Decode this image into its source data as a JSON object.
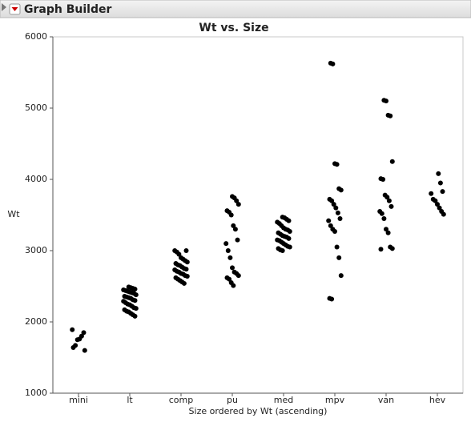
{
  "header": {
    "title": "Graph Builder"
  },
  "chart_data": {
    "type": "strip",
    "title": "Wt vs. Size",
    "x_label": "Size ordered by Wt (ascending)",
    "y_label": "Wt",
    "ylim": [
      1000,
      6000
    ],
    "yticks": [
      1000,
      2000,
      3000,
      4000,
      5000,
      6000
    ],
    "color": "#000000",
    "groups": [
      {
        "category": "mini",
        "values": [
          1890,
          1850,
          1800,
          1760,
          1750,
          1670,
          1640,
          1600
        ]
      },
      {
        "category": "lt",
        "values": [
          2080,
          2100,
          2120,
          2140,
          2150,
          2170,
          2190,
          2200,
          2220,
          2240,
          2250,
          2270,
          2290,
          2300,
          2310,
          2330,
          2340,
          2350,
          2360,
          2380,
          2400,
          2410,
          2420,
          2430,
          2440,
          2450,
          2460,
          2470,
          2480,
          2490
        ]
      },
      {
        "category": "comp",
        "values": [
          2540,
          2560,
          2580,
          2600,
          2620,
          2640,
          2650,
          2670,
          2680,
          2700,
          2710,
          2730,
          2740,
          2750,
          2770,
          2790,
          2800,
          2820,
          2840,
          2860,
          2880,
          2900,
          2950,
          2980,
          3000,
          3000
        ]
      },
      {
        "category": "pu",
        "values": [
          2510,
          2550,
          2600,
          2620,
          2650,
          2680,
          2700,
          2760,
          2900,
          3000,
          3100,
          3150,
          3300,
          3350,
          3500,
          3540,
          3560,
          3650,
          3700,
          3740,
          3760
        ]
      },
      {
        "category": "med",
        "values": [
          3000,
          3010,
          3030,
          3050,
          3060,
          3080,
          3100,
          3120,
          3140,
          3150,
          3170,
          3190,
          3200,
          3210,
          3230,
          3250,
          3270,
          3290,
          3300,
          3320,
          3350,
          3380,
          3400,
          3420,
          3440,
          3460,
          3470
        ]
      },
      {
        "category": "mpv",
        "values": [
          2320,
          2330,
          2650,
          2900,
          3050,
          3270,
          3300,
          3350,
          3420,
          3450,
          3530,
          3600,
          3650,
          3700,
          3720,
          3850,
          3870,
          4210,
          4220,
          5620,
          5630
        ]
      },
      {
        "category": "van",
        "values": [
          3020,
          3030,
          3050,
          3250,
          3300,
          3450,
          3520,
          3550,
          3620,
          3700,
          3750,
          3780,
          4000,
          4010,
          4250,
          4890,
          4900,
          5100,
          5110
        ]
      },
      {
        "category": "hev",
        "values": [
          3510,
          3550,
          3600,
          3650,
          3700,
          3720,
          3800,
          3830,
          3950,
          4080
        ]
      }
    ]
  }
}
